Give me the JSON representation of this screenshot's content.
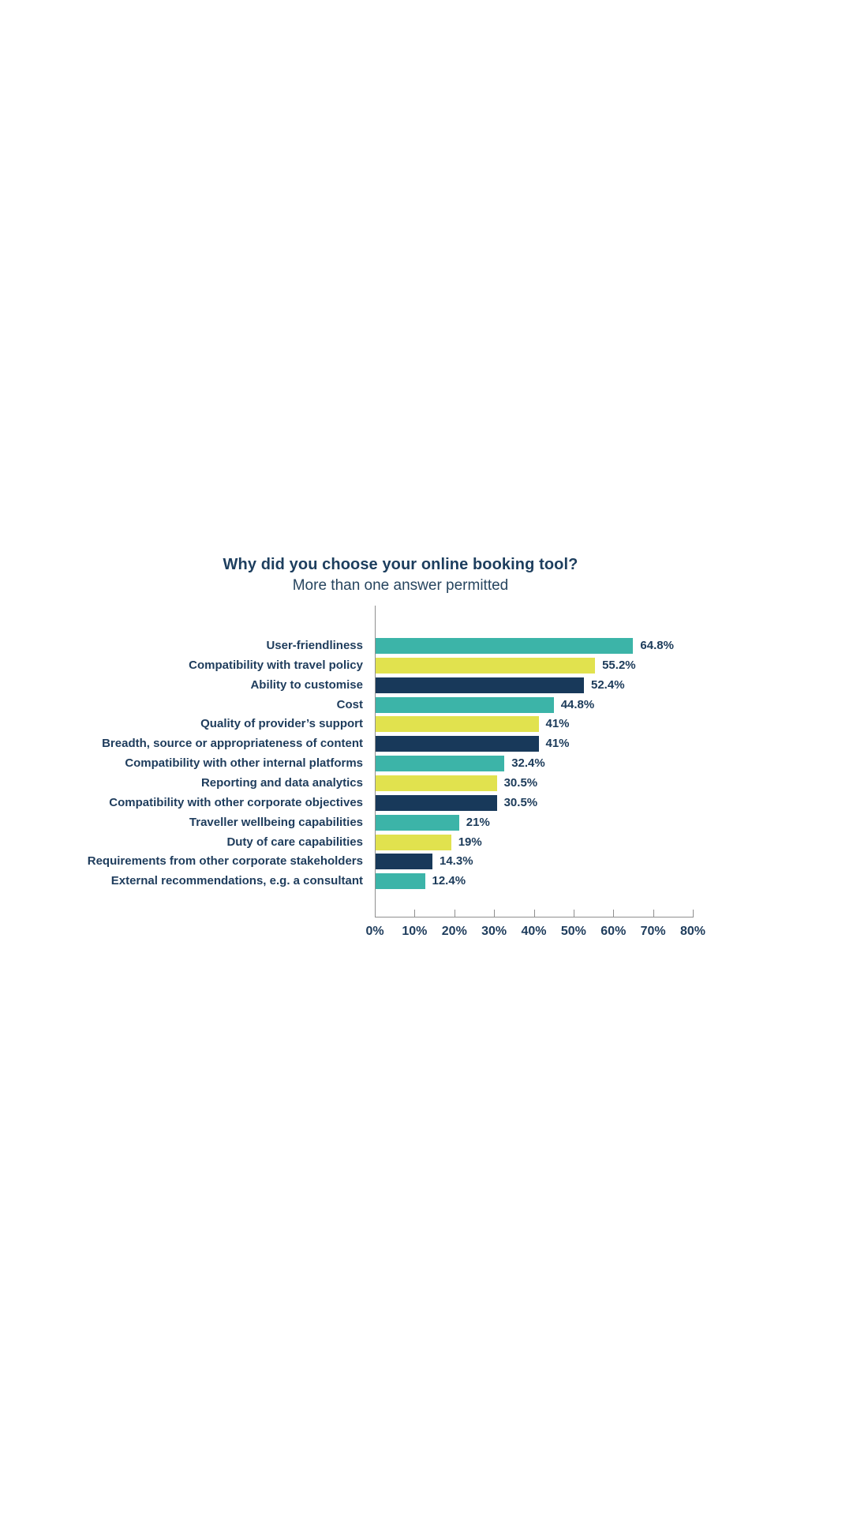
{
  "page": {
    "background": "#ffffff"
  },
  "chart_data": {
    "type": "bar",
    "orientation": "horizontal",
    "title": "Why did you choose your online booking tool?",
    "subtitle": "More than one answer permitted",
    "categories": [
      "User-friendliness",
      "Compatibility with travel policy",
      "Ability to customise",
      "Cost",
      "Quality of provider’s support",
      "Breadth, source or appropriateness of content",
      "Compatibility with other internal platforms",
      "Reporting and data analytics",
      "Compatibility with other corporate objectives",
      "Traveller wellbeing capabilities",
      "Duty of care capabilities",
      "Requirements from other corporate stakeholders",
      "External recommendations, e.g. a consultant"
    ],
    "values": [
      64.8,
      55.2,
      52.4,
      44.8,
      41,
      41,
      32.4,
      30.5,
      30.5,
      21,
      19,
      14.3,
      12.4
    ],
    "value_labels": [
      "64.8%",
      "55.2%",
      "52.4%",
      "44.8%",
      "41%",
      "41%",
      "32.4%",
      "30.5%",
      "30.5%",
      "21%",
      "19%",
      "14.3%",
      "12.4%"
    ],
    "xlim": [
      0,
      80
    ],
    "x_tick_labels": [
      "0%",
      "10%",
      "20%",
      "30%",
      "40%",
      "50%",
      "60%",
      "70%",
      "80%"
    ],
    "grid": false,
    "legend": false,
    "bar_color_cycle": [
      "#3CB4A8",
      "#E1E24E",
      "#18395A"
    ],
    "colors": {
      "title": "#1D3E5E",
      "subtitle": "#27455F",
      "category_label": "#1E3C5C",
      "value_label": "#1C3B5A",
      "axis_line": "#8F8F8F"
    }
  }
}
